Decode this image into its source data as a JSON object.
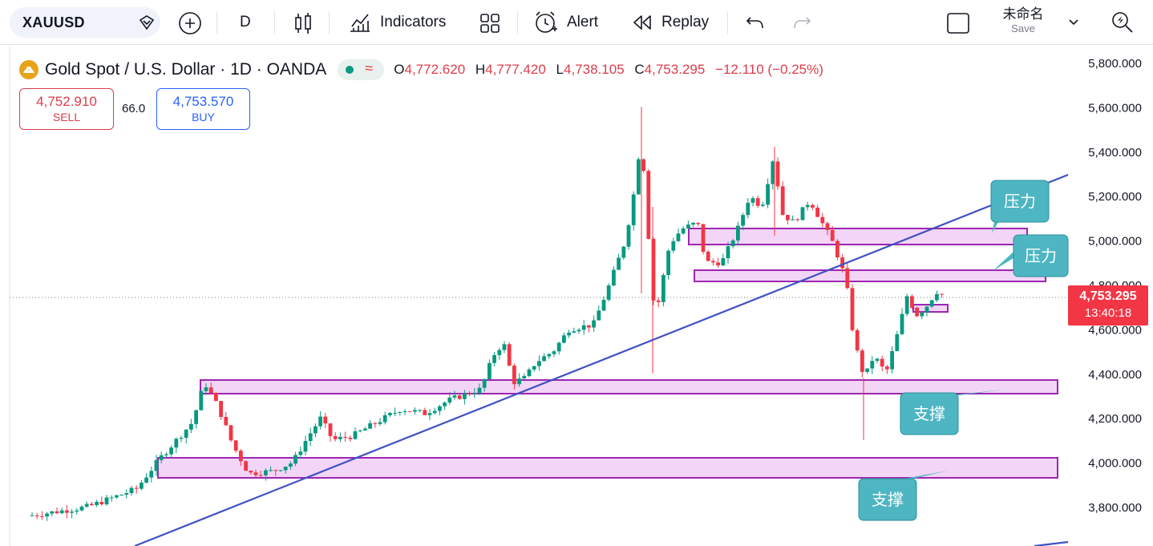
{
  "toolbar": {
    "symbol": "XAUUSD",
    "interval": "D",
    "indicators_label": "Indicators",
    "alert_label": "Alert",
    "replay_label": "Replay",
    "layout_name": "未命名",
    "save_label": "Save"
  },
  "legend": {
    "title": "Gold Spot / U.S. Dollar · 1D · OANDA",
    "open_label": "O",
    "open": "4,772.620",
    "high_label": "H",
    "high": "4,777.420",
    "low_label": "L",
    "low": "4,738.105",
    "close_label": "C",
    "close": "4,753.295",
    "change": "−12.110 (−0.25%)"
  },
  "trade": {
    "sell_price": "4,752.910",
    "sell_label": "SELL",
    "spread": "66.0",
    "buy_price": "4,753.570",
    "buy_label": "BUY"
  },
  "price_axis": {
    "ticks": [
      "5,800.000",
      "5,600.000",
      "5,400.000",
      "5,200.000",
      "5,000.000",
      "4,800.000",
      "4,600.000",
      "4,400.000",
      "4,200.000",
      "4,000.000",
      "3,800.000"
    ],
    "current_price": "4,753.295",
    "countdown": "13:40:18"
  },
  "annotations": {
    "resistance_1": "压力",
    "resistance_2": "压力",
    "support_1": "支撑",
    "support_2": "支撑"
  },
  "colors": {
    "up": "#089981",
    "down": "#f23645",
    "zone_fill": "#f3d5f7",
    "zone_border": "#9c27b0",
    "trendline": "#3f51c4",
    "callout": "#4db6c2",
    "accent": "#2962ff"
  }
}
